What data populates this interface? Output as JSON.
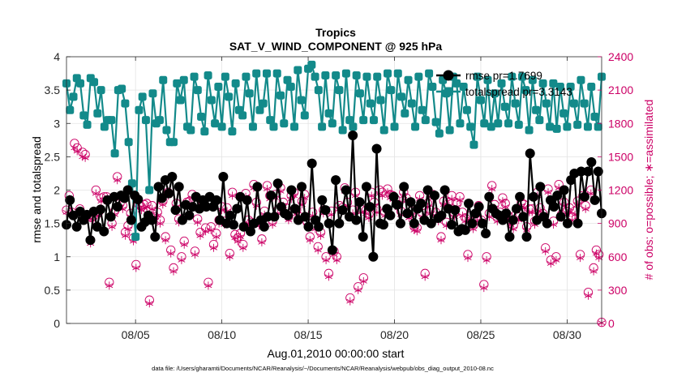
{
  "chart_data": {
    "type": "line",
    "title": "Tropics",
    "subtitle": "SAT_V_WIND_COMPONENT @ 925 hPa",
    "xlabel": "Aug.01,2010 00:00:00 start",
    "ylabel_left": "rmse and totalspread",
    "ylabel_right": "# of obs: o=possible; ∗=assimilated",
    "footer": "data file: /Users/gharamti/Documents/NCAR/Reanalysis/~/Documents/NCAR/Reanalysis/webpub/obs_diag_output_2010-08.nc",
    "xlim": [
      1,
      32
    ],
    "ylim_left": [
      0,
      4
    ],
    "ylim_right": [
      0,
      2400
    ],
    "x_ticks": [
      5,
      10,
      15,
      20,
      25,
      30
    ],
    "x_tick_labels": [
      "08/05",
      "08/10",
      "08/15",
      "08/20",
      "08/25",
      "08/30"
    ],
    "y_left_ticks": [
      0,
      0.5,
      1,
      1.5,
      2,
      2.5,
      3,
      3.5,
      4
    ],
    "y_left_tick_labels": [
      "0",
      "0.5",
      "1",
      "1.5",
      "2",
      "2.5",
      "3",
      "3.5",
      "4"
    ],
    "y_right_ticks": [
      0,
      300,
      600,
      900,
      1200,
      1500,
      1800,
      2100,
      2400
    ],
    "y_right_tick_labels": [
      "0",
      "300",
      "600",
      "900",
      "1200",
      "1500",
      "1800",
      "2100",
      "2400"
    ],
    "legend": [
      "rmse pr=1.7699",
      "totalspread pr=3.3143"
    ],
    "colors": {
      "rmse": "#000000",
      "spread": "#138a8a",
      "obs": "#cc0066"
    },
    "series": [
      {
        "name": "rmse",
        "values": [
          1.48,
          1.85,
          1.62,
          1.45,
          1.68,
          1.55,
          1.63,
          1.25,
          1.68,
          1.45,
          1.71,
          1.38,
          1.85,
          1.6,
          1.9,
          1.75,
          1.92,
          1.88,
          2.0,
          1.55,
          1.92,
          1.86,
          1.45,
          1.52,
          1.62,
          1.55,
          1.3,
          2.05,
          1.88,
          2.15,
          1.95,
          2.2,
          1.7,
          2.05,
          1.55,
          1.78,
          1.62,
          1.75,
          1.9,
          1.72,
          1.85,
          1.75,
          1.9,
          1.75,
          1.85,
          1.55,
          2.2,
          1.5,
          1.62,
          1.48,
          1.72,
          1.9,
          1.45,
          1.85,
          1.38,
          1.5,
          2.05,
          1.55,
          1.45,
          1.6,
          1.92,
          1.6,
          2.1,
          1.75,
          1.65,
          1.62,
          2.0,
          1.72,
          1.55,
          2.05,
          1.6,
          1.45,
          2.4,
          1.55,
          1.45,
          1.85,
          1.7,
          1.5,
          1.1,
          2.15,
          1.5,
          1.7,
          2.0,
          1.6,
          2.82,
          1.55,
          1.82,
          1.3,
          2.05,
          1.75,
          1.0,
          2.62,
          1.5,
          1.48,
          1.72,
          1.62,
          1.9,
          1.78,
          1.5,
          2.05,
          1.65,
          1.82,
          1.5,
          1.72,
          1.8,
          1.55,
          2.0,
          1.5,
          1.92,
          1.58,
          1.62,
          2.0,
          1.72,
          1.48,
          1.7,
          1.38,
          1.42,
          1.4,
          1.8,
          1.5,
          1.65,
          1.75,
          1.5,
          1.35,
          1.9,
          1.72,
          1.65,
          1.62,
          1.55,
          1.65,
          1.3,
          1.55,
          1.72,
          1.9,
          1.6,
          1.3,
          2.55,
          1.9,
          1.55,
          2.05,
          1.6,
          1.5,
          1.85,
          1.75,
          1.92,
          1.6,
          2.0,
          1.5,
          2.15,
          2.25,
          1.5,
          2.28,
          1.9,
          2.28,
          2.42,
          1.85,
          2.28,
          1.65
        ]
      },
      {
        "name": "totalspread",
        "values": [
          3.6,
          3.2,
          3.4,
          3.68,
          3.6,
          3.12,
          2.98,
          3.68,
          3.62,
          3.15,
          3.5,
          2.95,
          3.05,
          3.05,
          2.55,
          3.5,
          3.52,
          3.3,
          2.72,
          2.1,
          1.3,
          3.2,
          3.4,
          3.05,
          2.0,
          3.45,
          3.0,
          3.05,
          3.65,
          2.9,
          2.72,
          2.72,
          3.6,
          3.35,
          3.65,
          2.95,
          2.9,
          3.7,
          3.5,
          3.1,
          2.88,
          3.72,
          3.35,
          3.0,
          3.55,
          2.95,
          3.7,
          3.4,
          2.88,
          3.6,
          3.2,
          3.12,
          3.7,
          3.45,
          2.95,
          3.75,
          3.2,
          3.3,
          3.75,
          3.05,
          2.95,
          3.75,
          3.42,
          3.0,
          3.65,
          3.55,
          2.95,
          3.8,
          3.35,
          3.12,
          3.82,
          3.88,
          3.7,
          3.5,
          2.95,
          3.72,
          3.15,
          3.0,
          3.72,
          3.5,
          2.9,
          3.75,
          3.05,
          2.95,
          3.72,
          3.45,
          3.05,
          3.7,
          3.3,
          3.05,
          3.7,
          3.35,
          2.9,
          3.75,
          3.5,
          2.95,
          3.75,
          3.4,
          3.15,
          3.65,
          3.3,
          2.95,
          3.7,
          3.2,
          3.05,
          3.75,
          3.55,
          3.02,
          2.85,
          3.65,
          3.45,
          2.9,
          3.7,
          3.6,
          3.0,
          3.55,
          3.2,
          2.95,
          2.68,
          3.7,
          3.35,
          3.0,
          3.65,
          2.95,
          3.45,
          3.0,
          3.6,
          3.25,
          3.0,
          3.7,
          3.3,
          2.98,
          3.7,
          3.5,
          2.9,
          3.65,
          3.2,
          3.05,
          3.6,
          3.3,
          2.95,
          3.6,
          2.92,
          3.55,
          3.15,
          2.95,
          3.55,
          3.3,
          2.98,
          3.65,
          3.3,
          2.95,
          3.55,
          3.1,
          2.95,
          3.7
        ]
      },
      {
        "name": "obs_possible",
        "values": [
          1020,
          1150,
          1000,
          1620,
          1580,
          1030,
          1540,
          1520,
          960,
          750,
          960,
          1200,
          1000,
          1130,
          1140,
          1140,
          370,
          900,
          1010,
          1320,
          1080,
          1060,
          820,
          880,
          990,
          770,
          530,
          1070,
          1050,
          1070,
          1080,
          210,
          1060,
          960,
          1000,
          930,
          1100,
          780,
          1180,
          660,
          500,
          1080,
          940,
          600,
          740,
          1090,
          1100,
          1160,
          650,
          940,
          820,
          1090,
          860,
          370,
          870,
          710,
          810,
          930,
          1050,
          920,
          1040,
          630,
          1180,
          800,
          770,
          810,
          710,
          1170,
          930,
          910,
          1250,
          1090,
          910,
          760,
          1010,
          1240,
          1150,
          920,
          1160,
          1020,
          1220,
          1090,
          1040,
          960,
          1150,
          1180,
          1020,
          960,
          1100,
          1160,
          910,
          780,
          1000,
          880,
          690,
          820,
          1020,
          600,
          450,
          1010,
          650,
          600,
          1060,
          1040,
          1220,
          1090,
          230,
          1020,
          1180,
          330,
          1030,
          410,
          1020,
          980,
          1180,
          1090,
          1030,
          1200,
          1180,
          1000,
          1210,
          1160,
          1150,
          1120,
          1070,
          1010,
          1180,
          1130,
          980,
          1010,
          870,
          860,
          1150,
          990,
          450,
          1080,
          1020,
          1160,
          1000,
          950,
          780,
          1100,
          910,
          1090,
          1150,
          990,
          1080,
          1140,
          1000,
          950,
          620,
          970,
          880,
          950,
          1060,
          930,
          350,
          600,
          990,
          1240,
          1070,
          950,
          1000,
          1130,
          1080,
          970,
          920,
          880,
          980,
          960,
          1090,
          1070,
          870,
          1030,
          1030,
          920,
          1180,
          1040,
          990,
          680,
          1210,
          570,
          920,
          600,
          1250,
          980,
          1090,
          1010,
          1040,
          960,
          1010,
          1100,
          620,
          1150,
          1060,
          280,
          1200,
          500,
          660,
          620,
          10
        ]
      },
      {
        "name": "obs_assimilated",
        "values": [
          1000,
          1120,
          980,
          1580,
          1550,
          1000,
          1500,
          1490,
          930,
          720,
          930,
          1170,
          970,
          1100,
          1110,
          1110,
          340,
          870,
          980,
          1290,
          1050,
          1030,
          790,
          850,
          960,
          740,
          500,
          1040,
          1020,
          1040,
          1050,
          180,
          1030,
          930,
          970,
          900,
          1070,
          750,
          1150,
          630,
          470,
          1050,
          910,
          570,
          710,
          1060,
          1070,
          1130,
          620,
          910,
          790,
          1060,
          830,
          340,
          840,
          680,
          780,
          900,
          1020,
          890,
          1010,
          600,
          1150,
          770,
          740,
          780,
          680,
          1140,
          900,
          880,
          1220,
          1060,
          880,
          730,
          980,
          1210,
          1120,
          890,
          1130,
          990,
          1190,
          1060,
          1010,
          930,
          1120,
          1150,
          990,
          930,
          1070,
          1130,
          880,
          750,
          970,
          850,
          660,
          790,
          990,
          570,
          420,
          980,
          620,
          570,
          1030,
          1010,
          1190,
          1060,
          200,
          990,
          1150,
          300,
          1000,
          380,
          990,
          950,
          1150,
          1060,
          1000,
          1170,
          1150,
          970,
          1180,
          1130,
          1120,
          1090,
          1040,
          980,
          1150,
          1100,
          950,
          980,
          840,
          830,
          1120,
          960,
          420,
          1050,
          990,
          1130,
          970,
          920,
          750,
          1070,
          880,
          1060,
          1120,
          960,
          1050,
          1110,
          970,
          920,
          590,
          940,
          850,
          920,
          1030,
          900,
          320,
          570,
          960,
          1210,
          1040,
          920,
          970,
          1100,
          1050,
          940,
          890,
          850,
          950,
          930,
          1060,
          1040,
          840,
          1000,
          1000,
          890,
          1150,
          1010,
          960,
          650,
          1180,
          540,
          890,
          570,
          1220,
          950,
          1060,
          980,
          1010,
          930,
          980,
          1070,
          590,
          1120,
          1030,
          250,
          1170,
          470,
          630,
          590,
          5
        ]
      }
    ]
  }
}
